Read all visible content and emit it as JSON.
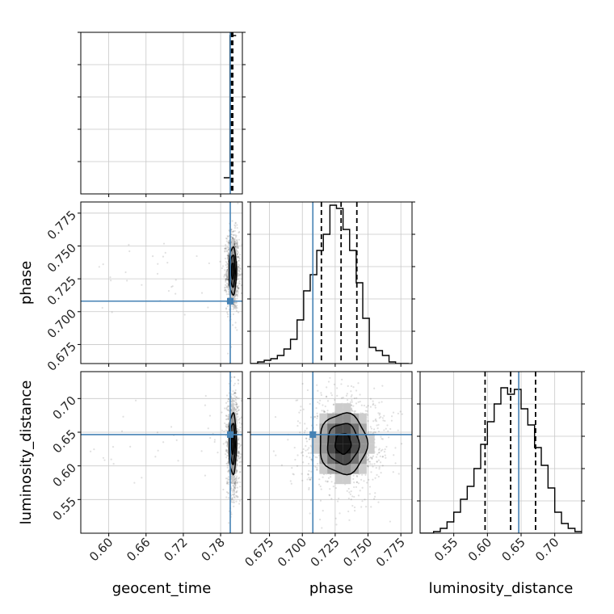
{
  "chart_data": {
    "type": "corner",
    "parameters": [
      "geocent_time",
      "phase",
      "luminosity_distance"
    ],
    "axis_labels": {
      "geocent_time": "geocent_time",
      "phase": "phase",
      "luminosity_distance": "luminosity_distance"
    },
    "ranges": {
      "geocent_time": [
        0.555,
        0.815
      ],
      "phase": [
        0.6605,
        0.7835
      ],
      "luminosity_distance": [
        0.5,
        0.74
      ]
    },
    "ticks": {
      "geocent_time": {
        "values": [
          0.6,
          0.66,
          0.72,
          0.78
        ],
        "labels": [
          "0.60",
          "0.66",
          "0.72",
          "0.78"
        ]
      },
      "phase": {
        "values": [
          0.675,
          0.7,
          0.725,
          0.75,
          0.775
        ],
        "labels": [
          "0.675",
          "0.700",
          "0.725",
          "0.750",
          "0.775"
        ]
      },
      "luminosity_distance": {
        "values": [
          0.55,
          0.6,
          0.65,
          0.7
        ],
        "labels": [
          "0.55",
          "0.60",
          "0.65",
          "0.70"
        ]
      }
    },
    "truths": {
      "geocent_time": 0.7955,
      "phase": 0.708,
      "luminosity_distance": 0.6465
    },
    "truth_color": "#4682b4",
    "hist_color": "#000000",
    "grid": true,
    "marginals": {
      "geocent_time": {
        "bin_edges": [
          0.785,
          0.795,
          0.805
        ],
        "counts": [
          0.1,
          0.98
        ],
        "quantiles": [
          0.7965,
          0.798,
          0.7995
        ]
      },
      "phase": {
        "bin_edges": [
          0.6605,
          0.666,
          0.671,
          0.676,
          0.681,
          0.686,
          0.691,
          0.696,
          0.701,
          0.706,
          0.711,
          0.716,
          0.721,
          0.726,
          0.731,
          0.736,
          0.741,
          0.746,
          0.751,
          0.756,
          0.761,
          0.766,
          0.771,
          0.776,
          0.781
        ],
        "counts": [
          0,
          0.01,
          0.02,
          0.03,
          0.05,
          0.09,
          0.15,
          0.27,
          0.45,
          0.55,
          0.7,
          0.8,
          0.98,
          0.96,
          0.83,
          0.7,
          0.5,
          0.28,
          0.1,
          0.08,
          0.05,
          0.01,
          0,
          0
        ],
        "quantiles": [
          0.7145,
          0.7295,
          0.7415
        ]
      },
      "luminosity_distance": {
        "bin_edges": [
          0.5,
          0.51,
          0.52,
          0.53,
          0.54,
          0.55,
          0.56,
          0.57,
          0.58,
          0.59,
          0.6,
          0.61,
          0.62,
          0.63,
          0.64,
          0.65,
          0.66,
          0.67,
          0.68,
          0.69,
          0.7,
          0.71,
          0.72,
          0.73,
          0.74
        ],
        "counts": [
          0,
          0,
          0.01,
          0.03,
          0.07,
          0.13,
          0.21,
          0.29,
          0.4,
          0.55,
          0.69,
          0.8,
          0.9,
          0.86,
          0.89,
          0.77,
          0.67,
          0.53,
          0.42,
          0.28,
          0.13,
          0.06,
          0.03,
          0.01
        ],
        "quantiles": [
          0.5965,
          0.6345,
          0.6715
        ]
      }
    },
    "joint": {
      "phase_vs_geocent_time": {
        "center": [
          0.7995,
          0.731
        ],
        "spread": [
          0.004,
          0.012
        ],
        "tail_x": 0.57
      },
      "luminosity_distance_vs_geocent_time": {
        "center": [
          0.7995,
          0.633
        ],
        "spread": [
          0.004,
          0.03
        ],
        "tail_x": 0.57
      },
      "luminosity_distance_vs_phase": {
        "center": [
          0.731,
          0.633
        ],
        "spread": [
          0.012,
          0.03
        ],
        "tail_x": null
      }
    },
    "contour_levels": [
      0.5,
      1.0,
      1.5
    ]
  }
}
